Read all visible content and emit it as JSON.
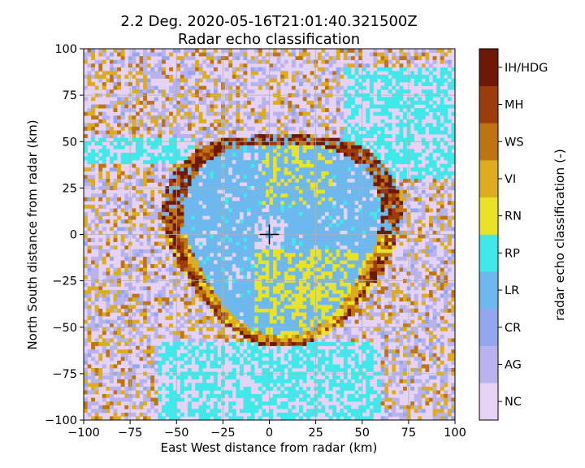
{
  "chart_data": {
    "type": "heatmap",
    "title": "2.2 Deg. 2020-05-16T21:01:40.321500Z",
    "subtitle": "Radar echo classification",
    "xlabel": "East West distance from radar (km)",
    "ylabel": "North South distance from radar (km)",
    "xlim": [
      -100,
      100
    ],
    "ylim": [
      -100,
      100
    ],
    "xticks": [
      "−100",
      "−75",
      "−50",
      "−25",
      "0",
      "25",
      "50",
      "75",
      "100"
    ],
    "yticks": [
      "−100",
      "−75",
      "−50",
      "−25",
      "0",
      "25",
      "50",
      "75",
      "100"
    ],
    "xtick_values": [
      -100,
      -75,
      -50,
      -25,
      0,
      25,
      50,
      75,
      100
    ],
    "ytick_values": [
      -100,
      -75,
      -50,
      -25,
      0,
      25,
      50,
      75,
      100
    ],
    "grid": true,
    "radar_marker": [
      0,
      0
    ],
    "colorbar": {
      "label": "radar echo classification (-)",
      "classes": [
        {
          "label": "NC",
          "color": "#e5d2f4"
        },
        {
          "label": "AG",
          "color": "#b8b2ee"
        },
        {
          "label": "CR",
          "color": "#94a6f0"
        },
        {
          "label": "LR",
          "color": "#6db8ee"
        },
        {
          "label": "RP",
          "color": "#40e8ea"
        },
        {
          "label": "RN",
          "color": "#eae226"
        },
        {
          "label": "VI",
          "color": "#dcac1c"
        },
        {
          "label": "WS",
          "color": "#be7410"
        },
        {
          "label": "MH",
          "color": "#9c3c0a"
        },
        {
          "label": "IH/HDG",
          "color": "#701806"
        }
      ]
    },
    "regions": {
      "ring_center": [
        7,
        1
      ],
      "ring_outer_radius_km": 60,
      "ring_inner_radius_km": 52,
      "inner_disk_class": "LR",
      "ring_class_north_west": "IH/HDG",
      "ring_class_south": "WS",
      "outer_region_classes": [
        "NC",
        "AG",
        "RP",
        "VI",
        "WS"
      ]
    }
  }
}
